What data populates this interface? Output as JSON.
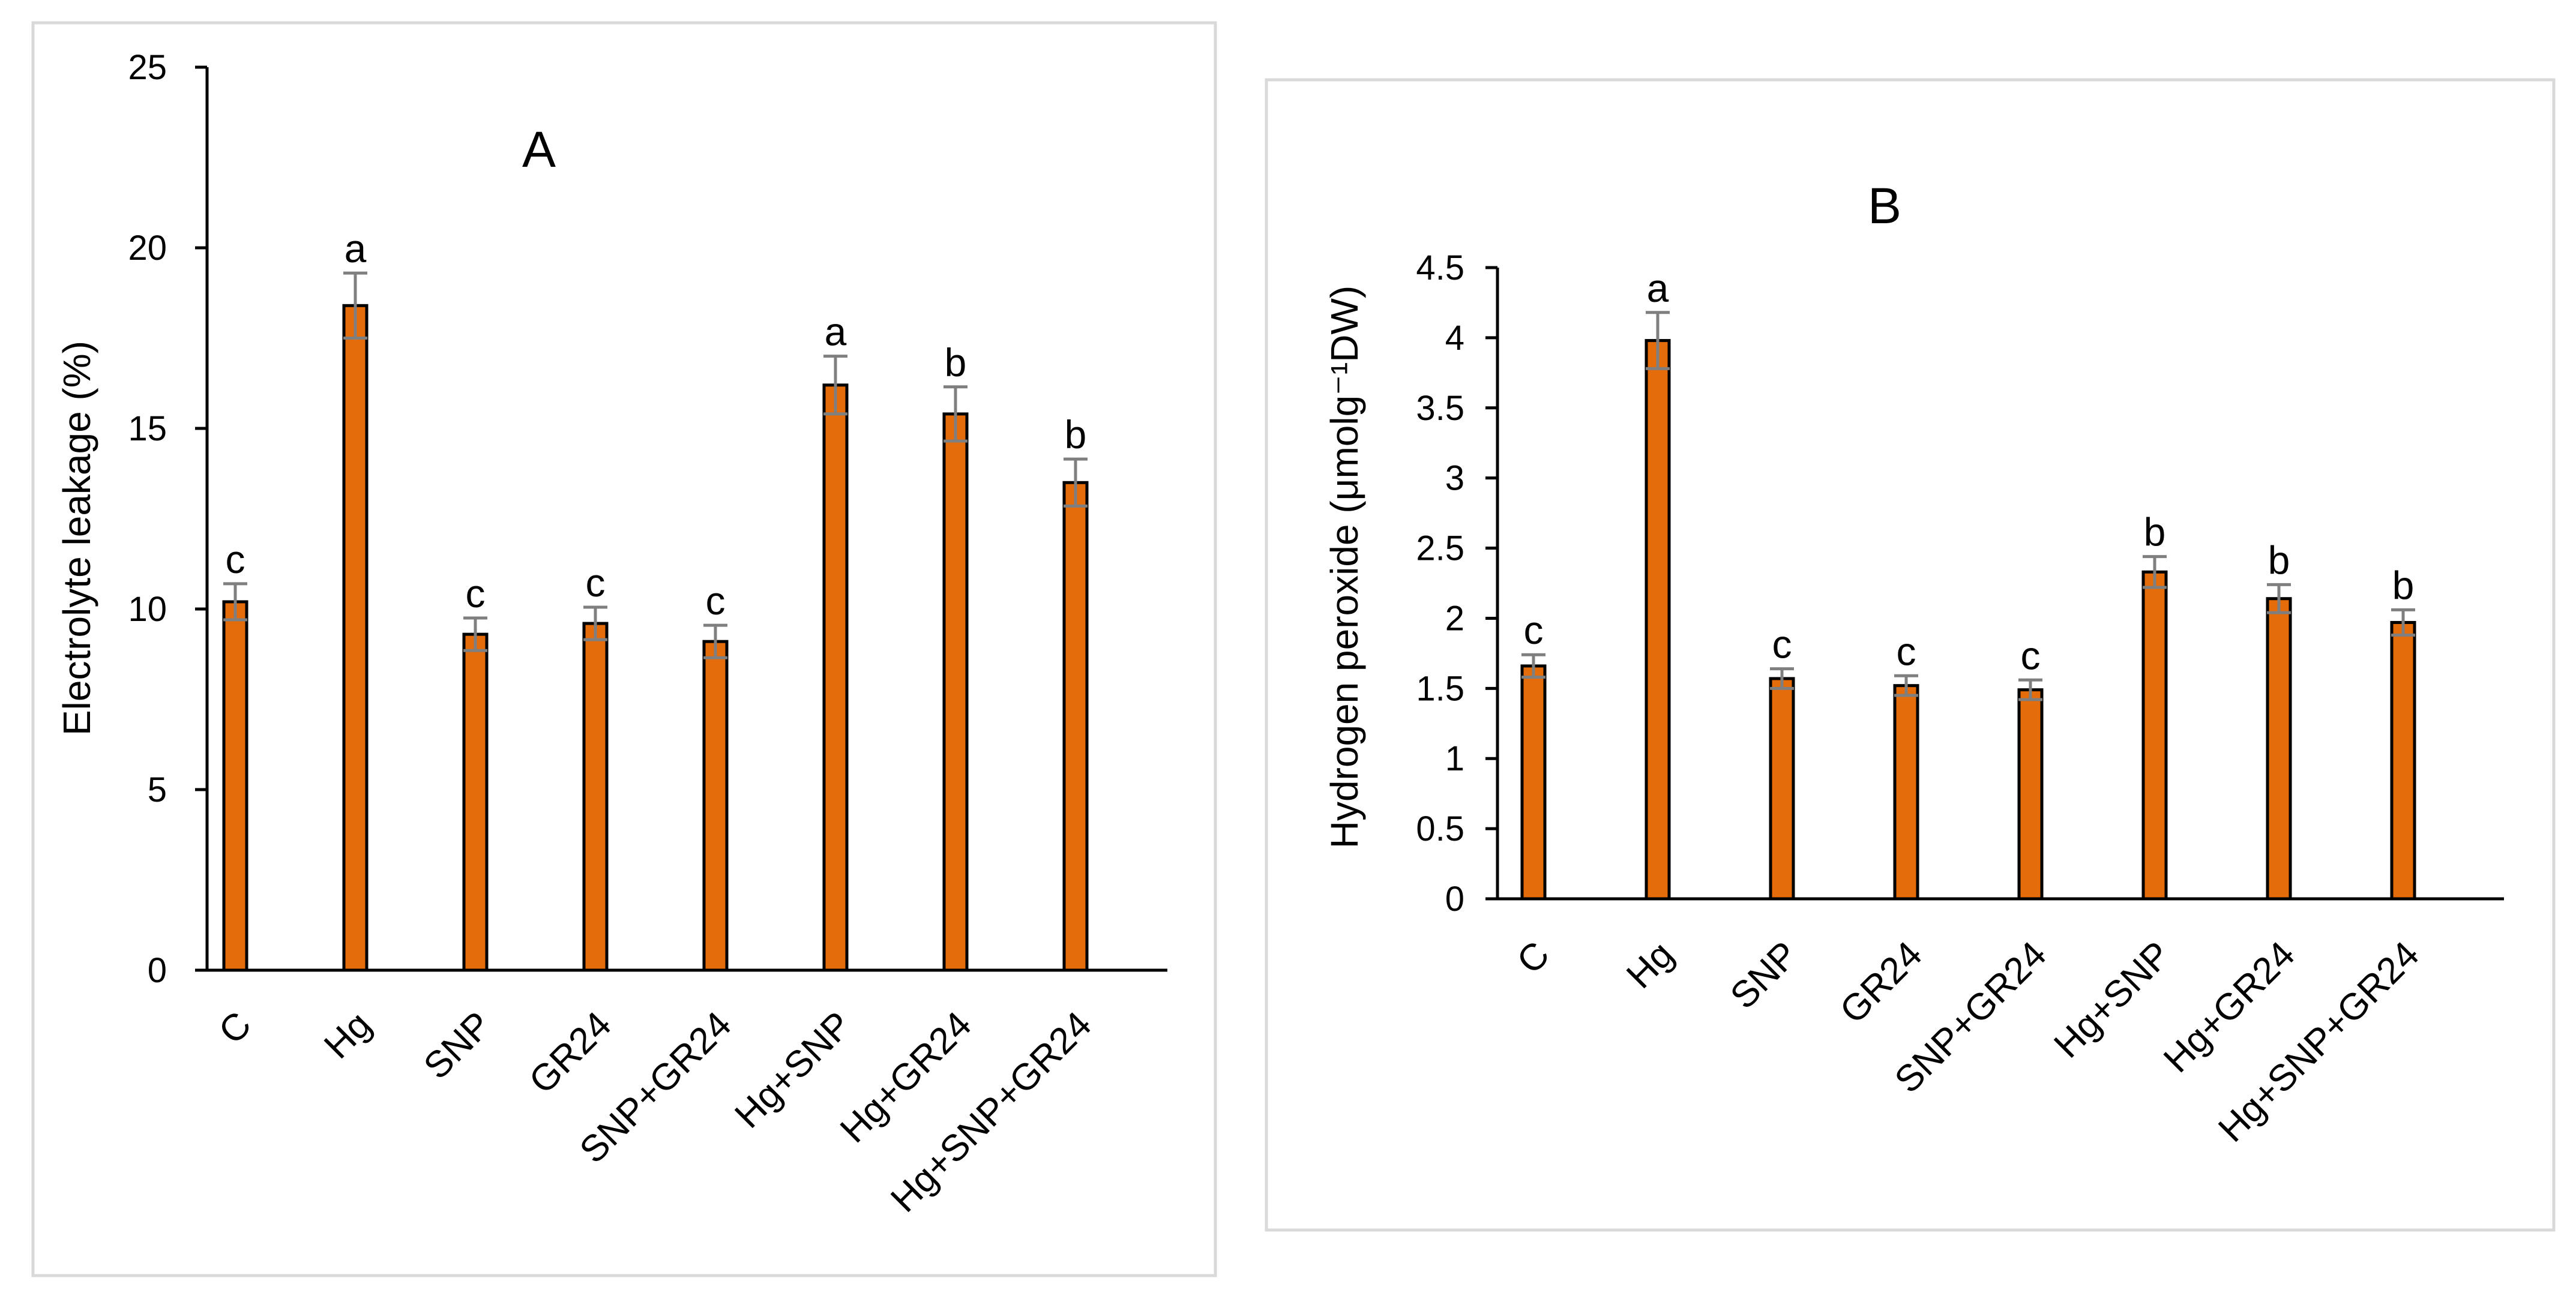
{
  "colors": {
    "bar": "#E46C0A",
    "bar_outline": "#000000",
    "error_bar": "#7F7F7F",
    "frame": "#D9D9D9",
    "axis": "#000000"
  },
  "chart_data": [
    {
      "type": "bar",
      "title": "A",
      "xlabel": "",
      "ylabel": "Electrolyte  leakage (%)",
      "ylim": [
        0,
        25
      ],
      "yticks": [
        0,
        5,
        10,
        15,
        20,
        25
      ],
      "ytick_labels": [
        "0",
        "5",
        "10",
        "15",
        "20",
        "25"
      ],
      "grid": false,
      "categories": [
        "C",
        "Hg",
        "SNP",
        "GR24",
        "SNP+GR24",
        "Hg+SNP",
        "Hg+GR24",
        "Hg+SNP+GR24"
      ],
      "values": [
        10.2,
        18.4,
        9.3,
        9.6,
        9.1,
        16.2,
        15.4,
        13.5
      ],
      "errors": [
        0.5,
        0.9,
        0.45,
        0.45,
        0.45,
        0.8,
        0.75,
        0.65
      ],
      "significance": [
        "c",
        "a",
        "c",
        "c",
        "c",
        "a",
        "b",
        "b"
      ]
    },
    {
      "type": "bar",
      "title": "B",
      "xlabel": "",
      "ylabel": "Hydrogen peroxide (μmolg⁻¹DW)",
      "ylim": [
        0,
        4.5
      ],
      "yticks": [
        0,
        0.5,
        1,
        1.5,
        2,
        2.5,
        3,
        3.5,
        4,
        4.5
      ],
      "ytick_labels": [
        "0",
        "0.5",
        "1",
        "1.5",
        "2",
        "2.5",
        "3",
        "3.5",
        "4",
        "4.5"
      ],
      "grid": false,
      "categories": [
        "C",
        "Hg",
        "SNP",
        "GR24",
        "SNP+GR24",
        "Hg+SNP",
        "Hg+GR24",
        "Hg+SNP+GR24"
      ],
      "values": [
        1.66,
        3.98,
        1.57,
        1.52,
        1.49,
        2.33,
        2.14,
        1.97
      ],
      "errors": [
        0.08,
        0.2,
        0.07,
        0.07,
        0.07,
        0.11,
        0.1,
        0.09
      ],
      "significance": [
        "c",
        "a",
        "c",
        "c",
        "c",
        "b",
        "b",
        "b"
      ]
    }
  ]
}
